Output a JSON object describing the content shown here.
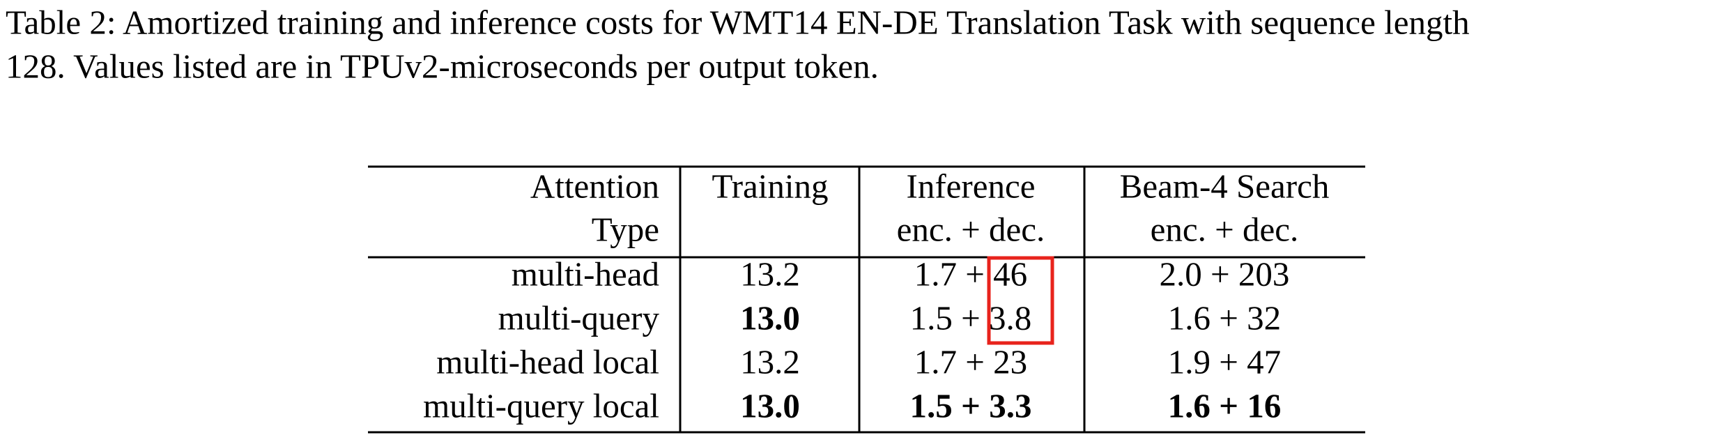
{
  "caption": [
    "Table 2: Amortized training and inference costs for WMT14 EN-DE Translation Task with sequence length",
    "128. Values listed are in TPUv2-microseconds per output token."
  ],
  "table": {
    "header": [
      [
        "Attention",
        "Type"
      ],
      [
        "Training"
      ],
      [
        "Inference",
        "enc. + dec."
      ],
      [
        "Beam-4 Search",
        "enc. + dec."
      ]
    ],
    "rows": [
      {
        "cells": [
          "multi-head",
          "13.2",
          "1.7 + 46",
          "2.0 + 203"
        ],
        "bold": [
          false,
          false,
          false,
          false
        ]
      },
      {
        "cells": [
          "multi-query",
          "13.0",
          "1.5 + 3.8",
          "1.6 + 32"
        ],
        "bold": [
          false,
          true,
          false,
          false
        ]
      },
      {
        "cells": [
          "multi-head local",
          "13.2",
          "1.7 + 23",
          "1.9 + 47"
        ],
        "bold": [
          false,
          false,
          false,
          false
        ]
      },
      {
        "cells": [
          "multi-query local",
          "13.0",
          "1.5 + 3.3",
          "1.6 + 16"
        ],
        "bold": [
          false,
          true,
          true,
          true
        ]
      }
    ]
  }
}
